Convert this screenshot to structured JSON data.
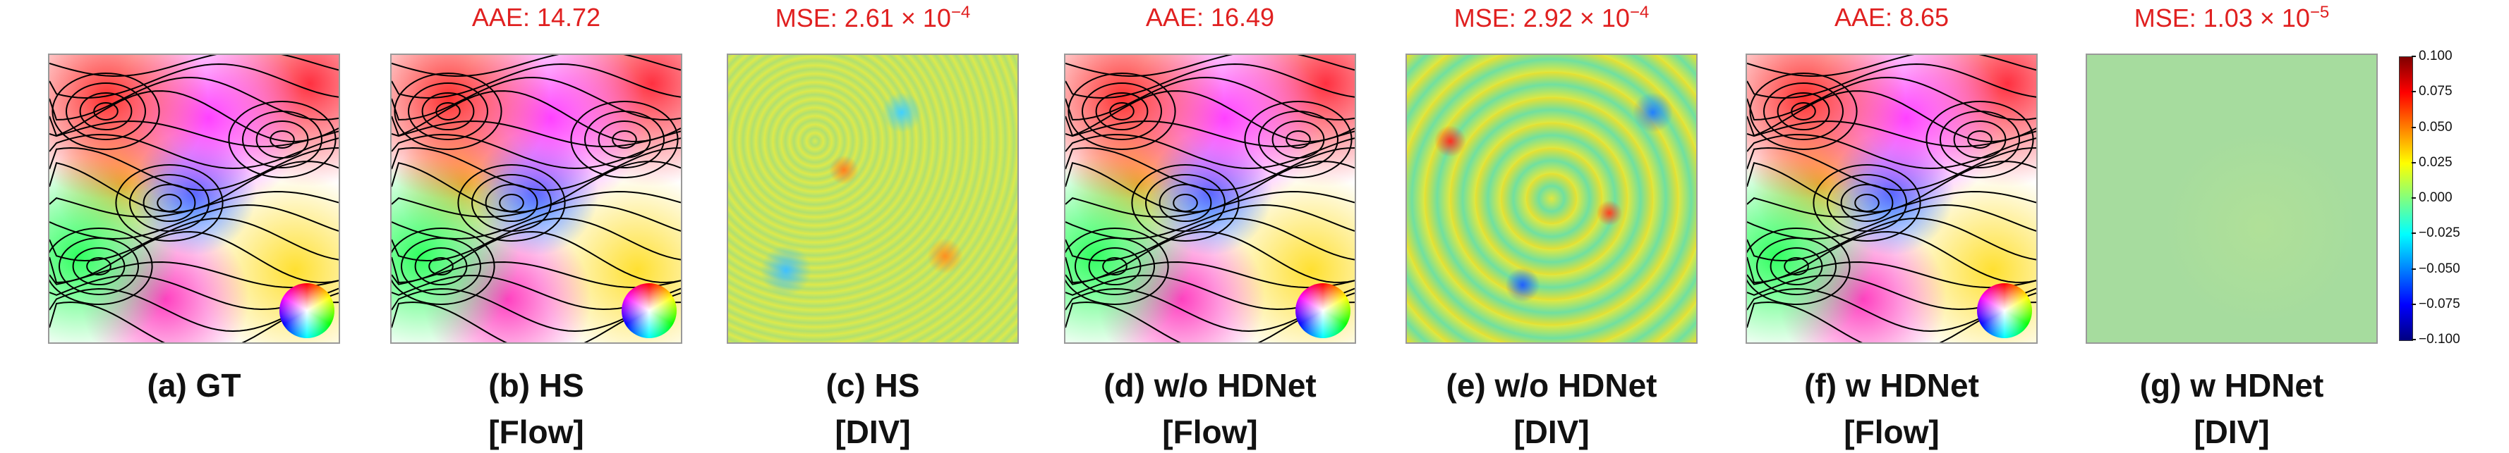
{
  "panels": [
    {
      "kind": "flow",
      "metric": null,
      "caption": [
        "(a) GT"
      ]
    },
    {
      "kind": "flow",
      "metric": {
        "text": "AAE: 14.72"
      },
      "caption": [
        "(b) HS",
        "[Flow]"
      ]
    },
    {
      "kind": "div-noise",
      "metric": {
        "text": "MSE: 2.61 × 10",
        "sup": "−4"
      },
      "caption": [
        "(c) HS",
        "[DIV]"
      ]
    },
    {
      "kind": "flow",
      "metric": {
        "text": "AAE: 16.49"
      },
      "caption": [
        "(d) w/o HDNet",
        "[Flow]"
      ]
    },
    {
      "kind": "div-blobs",
      "metric": {
        "text": "MSE: 2.92 × 10",
        "sup": "−4"
      },
      "caption": [
        "(e) w/o HDNet",
        "[DIV]"
      ]
    },
    {
      "kind": "flow",
      "metric": {
        "text": "AAE: 8.65"
      },
      "caption": [
        "(f) w HDNet",
        "[Flow]"
      ]
    },
    {
      "kind": "div-smooth",
      "metric": {
        "text": "MSE: 1.03 × 10",
        "sup": "−5"
      },
      "caption": [
        "(g) w HDNet",
        "[DIV]"
      ]
    }
  ],
  "colorbar": {
    "lim": [
      -0.1,
      0.1
    ],
    "ticks": [
      {
        "value": 0.1,
        "label": "0.100"
      },
      {
        "value": 0.075,
        "label": "0.075"
      },
      {
        "value": 0.05,
        "label": "0.050"
      },
      {
        "value": 0.025,
        "label": "0.025"
      },
      {
        "value": 0,
        "label": "0.000"
      },
      {
        "value": -0.025,
        "label": "−0.025"
      },
      {
        "value": -0.05,
        "label": "−0.050"
      },
      {
        "value": -0.075,
        "label": "−0.075"
      },
      {
        "value": -0.1,
        "label": "−0.100"
      }
    ]
  }
}
